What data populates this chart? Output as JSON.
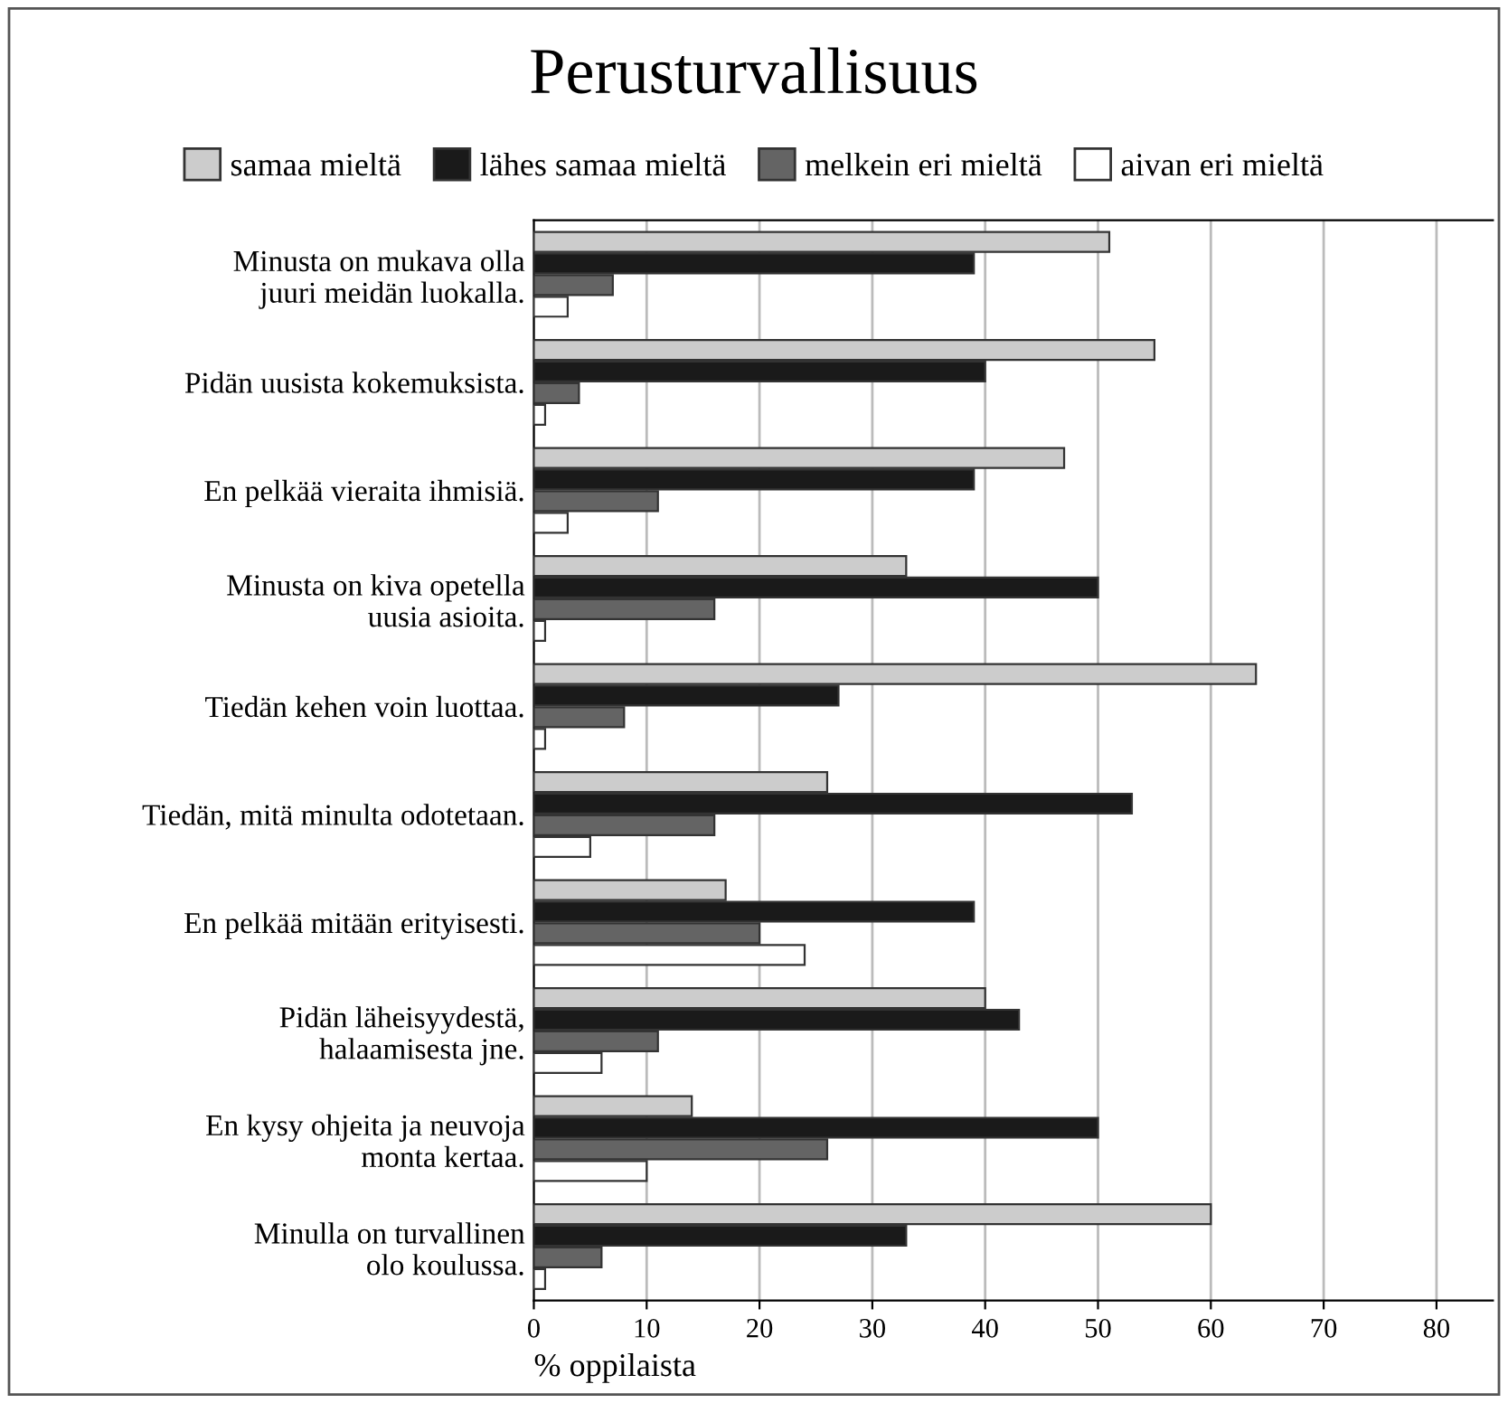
{
  "chart_data": {
    "type": "bar",
    "orientation": "horizontal",
    "title": "Perusturvallisuus",
    "xlabel": "% oppilaista",
    "categories": [
      "Minusta on mukava olla\njuuri meidän luokalla.",
      "Pidän uusista kokemuksista.",
      "En pelkää vieraita ihmisiä.",
      "Minusta on kiva opetella\nuusia asioita.",
      "Tiedän kehen voin luottaa.",
      "Tiedän, mitä minulta odotetaan.",
      "En pelkää mitään erityisesti.",
      "Pidän läheisyydestä,\nhalaamisesta jne.",
      "En kysy ohjeita ja neuvoja\nmonta kertaa.",
      "Minulla on turvallinen\nolo koulussa."
    ],
    "series": [
      {
        "name": "samaa mieltä",
        "color": "#cccccc",
        "values": [
          51,
          55,
          47,
          33,
          64,
          26,
          17,
          40,
          14,
          60
        ]
      },
      {
        "name": "lähes samaa mieltä",
        "color": "#1a1a1a",
        "values": [
          39,
          40,
          39,
          50,
          27,
          53,
          39,
          43,
          50,
          33
        ]
      },
      {
        "name": "melkein eri mieltä",
        "color": "#646464",
        "values": [
          7,
          4,
          11,
          16,
          8,
          16,
          20,
          11,
          26,
          6
        ]
      },
      {
        "name": "aivan eri mieltä",
        "color": "#ffffff",
        "values": [
          3,
          1,
          3,
          1,
          1,
          5,
          24,
          6,
          10,
          1
        ]
      }
    ],
    "xlim": [
      0,
      85
    ],
    "xticks": [
      0,
      10,
      20,
      30,
      40,
      50,
      60,
      70,
      80
    ],
    "grid": "x",
    "legend": "top"
  }
}
